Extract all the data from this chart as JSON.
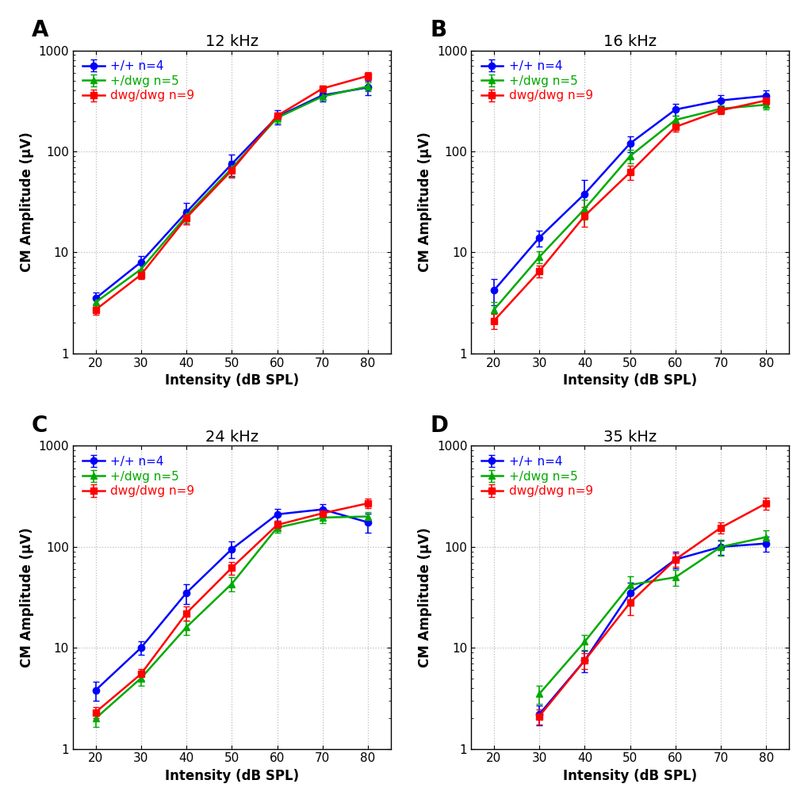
{
  "panels": [
    {
      "label": "A",
      "title": "12 kHz",
      "x": [
        20,
        30,
        40,
        50,
        60,
        70,
        80
      ],
      "xlim": [
        15,
        85
      ],
      "xticks": [
        20,
        30,
        40,
        50,
        60,
        70,
        80
      ],
      "series": [
        {
          "name": "+/+ n=4",
          "color": "#0000FF",
          "marker": "o",
          "y": [
            3.5,
            8.0,
            25.0,
            75.0,
            220.0,
            360.0,
            430.0
          ],
          "yerr": [
            0.5,
            1.2,
            6.0,
            18.0,
            35.0,
            45.0,
            70.0
          ]
        },
        {
          "name": "+/dwg n=5",
          "color": "#00AA00",
          "marker": "^",
          "y": [
            3.2,
            6.8,
            23.0,
            68.0,
            215.0,
            350.0,
            440.0
          ],
          "yerr": [
            0.3,
            0.8,
            3.5,
            12.0,
            22.0,
            28.0,
            45.0
          ]
        },
        {
          "name": "dwg/dwg n=9",
          "color": "#FF0000",
          "marker": "s",
          "y": [
            2.7,
            6.0,
            22.0,
            65.0,
            225.0,
            420.0,
            560.0
          ],
          "yerr": [
            0.3,
            0.6,
            3.0,
            10.0,
            18.0,
            32.0,
            50.0
          ]
        }
      ]
    },
    {
      "label": "B",
      "title": "16 kHz",
      "x": [
        20,
        30,
        40,
        50,
        60,
        70,
        80
      ],
      "xlim": [
        15,
        85
      ],
      "xticks": [
        20,
        30,
        40,
        50,
        60,
        70,
        80
      ],
      "series": [
        {
          "name": "+/+ n=4",
          "color": "#0000FF",
          "marker": "o",
          "y": [
            4.2,
            14.0,
            38.0,
            120.0,
            260.0,
            320.0,
            355.0
          ],
          "yerr": [
            1.2,
            2.5,
            14.0,
            22.0,
            35.0,
            38.0,
            48.0
          ]
        },
        {
          "name": "+/dwg n=5",
          "color": "#00AA00",
          "marker": "^",
          "y": [
            2.7,
            9.0,
            27.0,
            90.0,
            205.0,
            265.0,
            290.0
          ],
          "yerr": [
            0.5,
            1.2,
            6.0,
            14.0,
            22.0,
            22.0,
            28.0
          ]
        },
        {
          "name": "dwg/dwg n=9",
          "color": "#FF0000",
          "marker": "s",
          "y": [
            2.1,
            6.5,
            23.0,
            62.0,
            175.0,
            255.0,
            320.0
          ],
          "yerr": [
            0.35,
            0.9,
            5.0,
            10.0,
            18.0,
            20.0,
            28.0
          ]
        }
      ]
    },
    {
      "label": "C",
      "title": "24 kHz",
      "x": [
        20,
        30,
        40,
        50,
        60,
        70,
        80
      ],
      "xlim": [
        15,
        85
      ],
      "xticks": [
        20,
        30,
        40,
        50,
        60,
        70,
        80
      ],
      "series": [
        {
          "name": "+/+ n=4",
          "color": "#0000FF",
          "marker": "o",
          "y": [
            3.8,
            10.0,
            35.0,
            95.0,
            210.0,
            235.0,
            175.0
          ],
          "yerr": [
            0.8,
            1.5,
            8.0,
            18.0,
            28.0,
            32.0,
            38.0
          ]
        },
        {
          "name": "+/dwg n=5",
          "color": "#00AA00",
          "marker": "^",
          "y": [
            2.0,
            5.0,
            16.0,
            43.0,
            155.0,
            195.0,
            200.0
          ],
          "yerr": [
            0.35,
            0.8,
            2.5,
            7.0,
            18.0,
            22.0,
            22.0
          ]
        },
        {
          "name": "dwg/dwg n=9",
          "color": "#FF0000",
          "marker": "s",
          "y": [
            2.3,
            5.5,
            22.0,
            62.0,
            165.0,
            215.0,
            270.0
          ],
          "yerr": [
            0.3,
            0.7,
            3.5,
            9.0,
            16.0,
            20.0,
            28.0
          ]
        }
      ]
    },
    {
      "label": "D",
      "title": "35 kHz",
      "x": [
        30,
        40,
        50,
        60,
        70,
        80
      ],
      "xlim": [
        15,
        85
      ],
      "xticks": [
        20,
        30,
        40,
        50,
        60,
        70,
        80
      ],
      "series": [
        {
          "name": "+/+ n=4",
          "color": "#0000FF",
          "marker": "o",
          "y": [
            2.2,
            7.5,
            35.0,
            75.0,
            100.0,
            108.0
          ],
          "yerr": [
            0.5,
            1.8,
            9.0,
            14.0,
            16.0,
            18.0
          ]
        },
        {
          "name": "+/dwg n=5",
          "color": "#00AA00",
          "marker": "^",
          "y": [
            3.5,
            11.5,
            42.0,
            50.0,
            100.0,
            125.0
          ],
          "yerr": [
            0.7,
            2.0,
            9.0,
            9.0,
            18.0,
            20.0
          ]
        },
        {
          "name": "dwg/dwg n=9",
          "color": "#FF0000",
          "marker": "s",
          "y": [
            2.1,
            7.5,
            28.0,
            75.0,
            155.0,
            270.0
          ],
          "yerr": [
            0.35,
            1.3,
            7.0,
            11.0,
            20.0,
            38.0
          ]
        }
      ]
    }
  ],
  "ylabel": "CM Amplitude (μV)",
  "xlabel": "Intensity (dB SPL)",
  "ylim": [
    1,
    1000
  ],
  "grid_color": "#BBBBBB",
  "background_color": "#FFFFFF",
  "panel_label_fontsize": 20,
  "title_fontsize": 14,
  "axis_label_fontsize": 12,
  "tick_label_fontsize": 11,
  "legend_fontsize": 11,
  "line_width": 1.8,
  "marker_size": 6,
  "capsize": 3
}
